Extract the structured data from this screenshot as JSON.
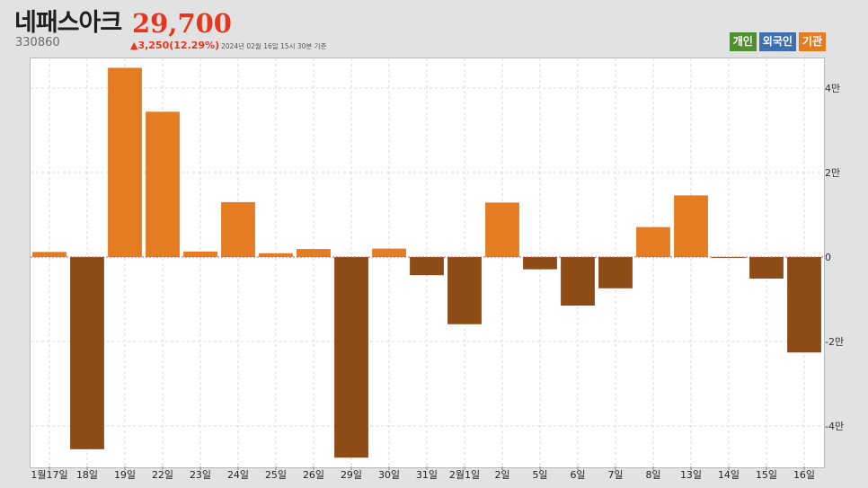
{
  "header": {
    "stock_name": "네패스아크",
    "price": "29,700",
    "code": "330860",
    "change": "▲3,250(12.29%)",
    "as_of": "2024년 02월 16일 15시 30분 기준"
  },
  "legend": [
    {
      "label": "개인",
      "color": "#4f8f2f"
    },
    {
      "label": "외국인",
      "color": "#3e6fb3"
    },
    {
      "label": "기관",
      "color": "#e57c22"
    }
  ],
  "colors": {
    "positive": "#e57c22",
    "negative": "#8d4b16",
    "zero_line": "#d9534f",
    "grid": "#d8d8d8"
  },
  "chart_data": {
    "type": "bar",
    "series_name": "기관",
    "categories": [
      "1월17일",
      "18일",
      "19일",
      "22일",
      "23일",
      "24일",
      "25일",
      "26일",
      "29일",
      "30일",
      "31일",
      "2월1일",
      "2일",
      "5일",
      "6일",
      "7일",
      "8일",
      "13일",
      "14일",
      "15일",
      "16일"
    ],
    "values": [
      1200,
      -45500,
      44800,
      34400,
      1300,
      13000,
      900,
      1900,
      -47500,
      2000,
      -4300,
      -15900,
      12900,
      -2900,
      -11500,
      -7400,
      7100,
      14600,
      -200,
      -5100,
      -22600
    ],
    "ylim": [
      -49000,
      47000
    ],
    "yticks": [
      40000,
      20000,
      0,
      -20000,
      -40000
    ],
    "ytick_labels": [
      "4만",
      "2만",
      "0",
      "-2만",
      "-4만"
    ],
    "grid": true,
    "legend_position": "top-right"
  }
}
